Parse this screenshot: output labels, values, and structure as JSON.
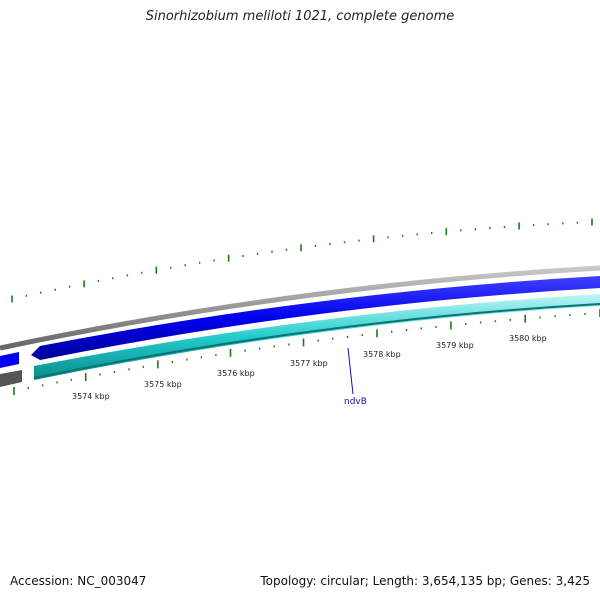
{
  "title": "Sinorhizobium meliloti 1021, complete genome",
  "accession_label": "Accession: NC_003047",
  "summary": "Topology: circular; Length: 3,654,135 bp; Genes: 3,425",
  "scale": {
    "unit": "kbp",
    "labels": [
      "3574 kbp",
      "3575 kbp",
      "3576 kbp",
      "3577 kbp",
      "3578 kbp",
      "3579 kbp",
      "3580 kbp"
    ]
  },
  "genes": [
    {
      "name": "ndvB",
      "color": "#1a1aaa"
    }
  ],
  "colors": {
    "forward_cds": "#0000ee",
    "reverse_cds": "#22cccc",
    "backbone": "#808080",
    "ticks": "#1a7a1a",
    "gene_label": "#1111aa"
  }
}
